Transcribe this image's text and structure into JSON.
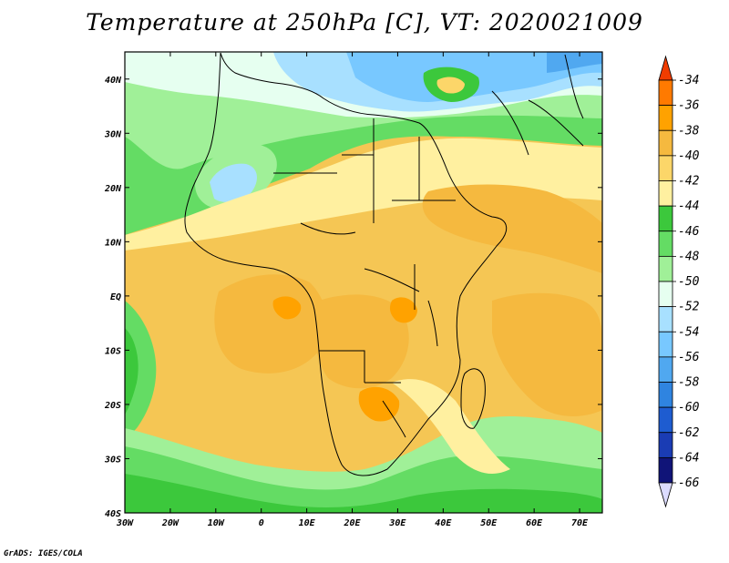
{
  "title": "Temperature at 250hPa [C], VT: 2020021009",
  "credit": "GrADS: IGES/COLA",
  "map": {
    "lon_range": [
      -30,
      75
    ],
    "lat_range": [
      -40,
      45
    ],
    "lon_ticks": [
      "30W",
      "20W",
      "10W",
      "0",
      "10E",
      "20E",
      "30E",
      "40E",
      "50E",
      "60E",
      "70E"
    ],
    "lat_ticks": [
      "40N",
      "30N",
      "20N",
      "10N",
      "EQ",
      "10S",
      "20S",
      "30S",
      "40S"
    ]
  },
  "colorbar": {
    "labels": [
      "-34",
      "-36",
      "-38",
      "-40",
      "-42",
      "-44",
      "-46",
      "-48",
      "-50",
      "-52",
      "-54",
      "-56",
      "-58",
      "-60",
      "-62",
      "-64",
      "-66"
    ],
    "colors": [
      "#f03c00",
      "#ff7a00",
      "#ffa200",
      "#f5b93f",
      "#fcd669",
      "#fff0a0",
      "#3cc83c",
      "#64dc64",
      "#a0f098",
      "#e6fff0",
      "#a8e0ff",
      "#78c8ff",
      "#50a8f0",
      "#2f84e0",
      "#1e5cd0",
      "#1a3cb4",
      "#101478",
      "#dcdcff"
    ]
  }
}
